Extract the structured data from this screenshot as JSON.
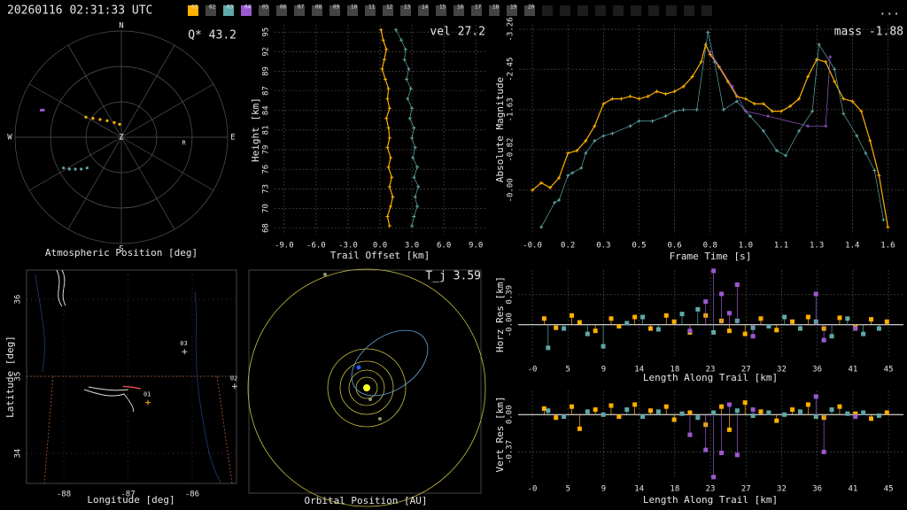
{
  "header": {
    "timestamp": "20260116 02:31:33 UTC",
    "menu": "...",
    "tabs": [
      {
        "label": "01",
        "color": "#ffb000"
      },
      {
        "label": "02",
        "color": "#444444"
      },
      {
        "label": "03",
        "color": "#5fa8a8"
      },
      {
        "label": "04",
        "color": "#9b59d0"
      },
      {
        "label": "05",
        "color": "#444444"
      },
      {
        "label": "06",
        "color": "#444444"
      },
      {
        "label": "07",
        "color": "#444444"
      },
      {
        "label": "08",
        "color": "#444444"
      },
      {
        "label": "09",
        "color": "#444444"
      },
      {
        "label": "10",
        "color": "#444444"
      },
      {
        "label": "11",
        "color": "#444444"
      },
      {
        "label": "12",
        "color": "#444444"
      },
      {
        "label": "13",
        "color": "#444444"
      },
      {
        "label": "14",
        "color": "#444444"
      },
      {
        "label": "15",
        "color": "#444444"
      },
      {
        "label": "16",
        "color": "#444444"
      },
      {
        "label": "17",
        "color": "#444444"
      },
      {
        "label": "18",
        "color": "#444444"
      },
      {
        "label": "19",
        "color": "#444444"
      },
      {
        "label": "20",
        "color": "#444444"
      }
    ]
  },
  "chart_data": [
    {
      "type": "polar",
      "xlabel": "Atmospheric Position [deg]",
      "annotation": "Q* 43.2",
      "compass": [
        "N",
        "E",
        "S",
        "W"
      ],
      "zenith": "Z",
      "xlim": [
        -90,
        90
      ],
      "ylim": [
        -90,
        90
      ],
      "marker": {
        "label": "R",
        "x": 53,
        "y": -5
      },
      "series": [
        {
          "color": "#ffb000",
          "x": [
            -30,
            -24,
            -18,
            -12,
            -6,
            -1.5
          ],
          "values": [
            17,
            16,
            15,
            14,
            12.5,
            11
          ]
        },
        {
          "color": "#5fa8a8",
          "x": [
            -49,
            -44,
            -39,
            -34,
            -29
          ],
          "values": [
            -26,
            -27,
            -27,
            -27,
            -26
          ]
        },
        {
          "color": "#9b59d0",
          "x": [
            -68,
            -66
          ],
          "values": [
            23,
            23
          ]
        }
      ]
    },
    {
      "type": "line",
      "xlabel": "Trail Offset [km]",
      "ylabel": "Height [km]",
      "annotation": "vel 27.2",
      "xlim": [
        -9.9,
        9.9
      ],
      "ylim": [
        66.8,
        95.7
      ],
      "xticks": [
        {
          "value": -9,
          "label": "-9.0"
        },
        {
          "value": -6,
          "label": "-6.0"
        },
        {
          "value": -3,
          "label": "-3.0"
        },
        {
          "value": 0,
          "label": "0.0"
        },
        {
          "value": 3,
          "label": "3.0"
        },
        {
          "value": 6,
          "label": "6.0"
        },
        {
          "value": 9,
          "label": "9.0"
        }
      ],
      "yticks": [
        {
          "value": 67.7,
          "label": "68"
        },
        {
          "value": 70.4,
          "label": "70"
        },
        {
          "value": 73.1,
          "label": "73"
        },
        {
          "value": 75.8,
          "label": "76"
        },
        {
          "value": 78.5,
          "label": "79"
        },
        {
          "value": 81.2,
          "label": "81"
        },
        {
          "value": 83.9,
          "label": "84"
        },
        {
          "value": 86.6,
          "label": "87"
        },
        {
          "value": 89.3,
          "label": "89"
        },
        {
          "value": 92.0,
          "label": "92"
        },
        {
          "value": 94.7,
          "label": "95"
        }
      ],
      "series": [
        {
          "color": "#ffb000",
          "x": [
            0.1,
            0.3,
            0.6,
            0.4,
            0.2,
            0.5,
            0.8,
            0.7,
            0.9,
            0.6,
            0.8,
            0.9,
            0.7,
            1.0,
            0.8,
            1.1,
            0.9,
            1.2,
            1.0,
            0.7,
            0.9
          ],
          "values": [
            95,
            93.6,
            92.3,
            90.9,
            89.6,
            88.2,
            86.9,
            85.5,
            84.2,
            82.8,
            81.5,
            80.1,
            78.8,
            77.4,
            76.1,
            74.7,
            73.4,
            72,
            70.7,
            69.3,
            68
          ]
        },
        {
          "color": "#5fa8a8",
          "x": [
            1.5,
            2.0,
            2.4,
            2.3,
            2.7,
            2.5,
            2.9,
            2.6,
            3.0,
            2.8,
            3.2,
            3.0,
            3.3,
            3.1,
            3.5,
            3.2,
            3.6,
            3.3,
            3.5,
            3.2,
            3.0
          ],
          "values": [
            95,
            93.6,
            92.3,
            90.9,
            89.6,
            88.2,
            86.9,
            85.5,
            84.2,
            82.8,
            81.5,
            80.1,
            78.8,
            77.4,
            76.1,
            74.7,
            73.4,
            72,
            70.7,
            69.3,
            68
          ]
        }
      ]
    },
    {
      "type": "line",
      "xlabel": "Frame Time [s]",
      "ylabel": "Absolute Magnitude",
      "annotation": "mass -1.88",
      "xlim": [
        -0.06,
        1.67
      ],
      "ylim": [
        0.9,
        -3.35
      ],
      "xticks": [
        {
          "value": 0,
          "label": "-0.0"
        },
        {
          "value": 0.16,
          "label": "0.2"
        },
        {
          "value": 0.32,
          "label": "0.3"
        },
        {
          "value": 0.48,
          "label": "0.5"
        },
        {
          "value": 0.64,
          "label": "0.6"
        },
        {
          "value": 0.8,
          "label": "0.8"
        },
        {
          "value": 0.96,
          "label": "1.0"
        },
        {
          "value": 1.12,
          "label": "1.1"
        },
        {
          "value": 1.28,
          "label": "1.3"
        },
        {
          "value": 1.44,
          "label": "1.4"
        },
        {
          "value": 1.6,
          "label": "1.6"
        }
      ],
      "yticks": [
        {
          "value": 0,
          "label": "-0.00"
        },
        -0.82,
        -1.63,
        -2.45,
        -3.26
      ],
      "series": [
        {
          "color": "#ffb000",
          "x": [
            0,
            0.04,
            0.08,
            0.12,
            0.16,
            0.2,
            0.24,
            0.28,
            0.32,
            0.36,
            0.4,
            0.44,
            0.48,
            0.52,
            0.56,
            0.6,
            0.64,
            0.68,
            0.72,
            0.76,
            0.78,
            0.8,
            0.84,
            0.88,
            0.92,
            0.96,
            1.0,
            1.04,
            1.08,
            1.12,
            1.16,
            1.2,
            1.24,
            1.28,
            1.32,
            1.36,
            1.4,
            1.44,
            1.48,
            1.52,
            1.56,
            1.6
          ],
          "values": [
            0.0,
            -0.15,
            -0.05,
            -0.25,
            -0.75,
            -0.8,
            -1.0,
            -1.3,
            -1.75,
            -1.85,
            -1.85,
            -1.9,
            -1.85,
            -1.9,
            -2.0,
            -1.95,
            -2.0,
            -2.1,
            -2.3,
            -2.6,
            -2.95,
            -2.75,
            -2.5,
            -2.2,
            -1.9,
            -1.85,
            -1.75,
            -1.75,
            -1.6,
            -1.6,
            -1.7,
            -1.85,
            -2.3,
            -2.65,
            -2.6,
            -2.2,
            -1.85,
            -1.8,
            -1.6,
            -1.0,
            -0.3,
            0.75
          ]
        },
        {
          "color": "#5fa8a8",
          "x": [
            0.04,
            0.1,
            0.12,
            0.16,
            0.18,
            0.22,
            0.24,
            0.28,
            0.32,
            0.36,
            0.44,
            0.48,
            0.54,
            0.6,
            0.64,
            0.68,
            0.74,
            0.79,
            0.82,
            0.86,
            0.92,
            0.98,
            1.04,
            1.1,
            1.14,
            1.2,
            1.26,
            1.29,
            1.36,
            1.4,
            1.46,
            1.5,
            1.54,
            1.58
          ],
          "values": [
            0.75,
            0.25,
            0.2,
            -0.3,
            -0.35,
            -0.45,
            -0.75,
            -1.0,
            -1.1,
            -1.15,
            -1.3,
            -1.4,
            -1.4,
            -1.5,
            -1.6,
            -1.63,
            -1.63,
            -3.2,
            -2.6,
            -1.63,
            -1.8,
            -1.5,
            -1.2,
            -0.8,
            -0.7,
            -1.2,
            -1.6,
            -2.95,
            -2.45,
            -1.55,
            -1.1,
            -0.75,
            -0.4,
            0.6
          ]
        },
        {
          "color": "#9b59d0",
          "x": [
            0.8,
            0.9,
            0.96,
            1.06,
            1.24,
            1.32,
            1.34
          ],
          "values": [
            -2.8,
            -2.1,
            -1.6,
            -1.5,
            -1.3,
            -1.3,
            -2.7
          ]
        }
      ]
    },
    {
      "type": "map",
      "xlabel": "Longitude [deg]",
      "ylabel": "Latitude [deg]",
      "xlim": [
        -88.58,
        -85.31
      ],
      "ylim": [
        33.61,
        36.38
      ],
      "xticks": [
        -88,
        -87,
        -86
      ],
      "yticks": [
        34,
        35,
        36
      ],
      "stations": {
        "labels": [
          "01",
          "02",
          "03"
        ],
        "x": [
          -86.69,
          -85.34,
          -86.12
        ],
        "values": [
          34.66,
          34.87,
          35.32
        ]
      },
      "series": [
        {
          "color": "#ff5050",
          "x": [
            -87.08,
            -86.94,
            -86.8
          ],
          "values": [
            34.87,
            34.86,
            34.84
          ]
        }
      ]
    },
    {
      "type": "orbit",
      "xlabel": "Orbital Position [AU]",
      "annotation": "T_j 3.59"
    },
    {
      "type": "stem",
      "xlabel": "Length Along Trail [km]",
      "ylabel": "Horz Res [km]",
      "xlim": [
        -1.8,
        47.1
      ],
      "ylim": [
        -0.44,
        0.71
      ],
      "xticks": [
        {
          "value": 0,
          "label": "-0"
        },
        {
          "value": 4.52,
          "label": "5"
        },
        {
          "value": 9.04,
          "label": "9"
        },
        {
          "value": 13.56,
          "label": "14"
        },
        {
          "value": 18.08,
          "label": "18"
        },
        {
          "value": 22.6,
          "label": "23"
        },
        {
          "value": 27.12,
          "label": "27"
        },
        {
          "value": 31.64,
          "label": "32"
        },
        {
          "value": 36.16,
          "label": "36"
        },
        {
          "value": 40.68,
          "label": "41"
        },
        {
          "value": 45.2,
          "label": "45"
        }
      ],
      "yticks": [
        {
          "value": 0,
          "label": "-0.00"
        },
        0.39
      ],
      "series": [
        {
          "color": "#ffb000",
          "x": [
            1.5,
            3,
            5,
            6,
            8,
            10,
            11,
            13,
            15,
            17,
            18,
            20,
            22,
            24,
            25,
            27,
            29,
            31,
            33,
            35,
            37,
            39,
            41,
            43,
            45
          ],
          "values": [
            0.08,
            -0.04,
            0.12,
            0.03,
            -0.08,
            0.08,
            -0.02,
            0.1,
            -0.05,
            0.12,
            0.04,
            -0.1,
            0.12,
            0.05,
            -0.08,
            -0.12,
            0.08,
            -0.07,
            0.04,
            0.1,
            -0.05,
            0.09,
            -0.03,
            0.07,
            0.04
          ]
        },
        {
          "color": "#5fa8a8",
          "x": [
            2,
            4,
            7,
            9,
            12,
            14,
            16,
            19,
            21,
            23,
            26,
            28,
            30,
            32,
            34,
            36,
            38,
            40,
            42,
            44
          ],
          "values": [
            -0.3,
            -0.05,
            -0.12,
            -0.28,
            0.02,
            0.1,
            -0.06,
            0.14,
            0.2,
            -0.1,
            0.05,
            -0.04,
            -0.02,
            0.1,
            -0.05,
            0.04,
            -0.15,
            0.08,
            -0.12,
            -0.05
          ]
        },
        {
          "color": "#9b59d0",
          "x": [
            20,
            22,
            23,
            24,
            25,
            26,
            28,
            36,
            37,
            41
          ],
          "values": [
            -0.08,
            0.3,
            0.7,
            0.4,
            0.15,
            0.52,
            -0.15,
            0.4,
            -0.2,
            -0.05
          ]
        }
      ]
    },
    {
      "type": "stem",
      "xlabel": "Length Along Trail [km]",
      "ylabel": "Vert Res [km]",
      "xlim": [
        -1.8,
        47.1
      ],
      "ylim": [
        -0.63,
        0.24
      ],
      "xticks": [
        {
          "value": 0,
          "label": "-0"
        },
        {
          "value": 4.52,
          "label": "5"
        },
        {
          "value": 9.04,
          "label": "9"
        },
        {
          "value": 13.56,
          "label": "14"
        },
        {
          "value": 18.08,
          "label": "18"
        },
        {
          "value": 22.6,
          "label": "23"
        },
        {
          "value": 27.12,
          "label": "27"
        },
        {
          "value": 31.64,
          "label": "32"
        },
        {
          "value": 36.16,
          "label": "36"
        },
        {
          "value": 40.68,
          "label": "41"
        },
        {
          "value": 45.2,
          "label": "45"
        }
      ],
      "yticks": [
        {
          "value": 0,
          "label": "0.00"
        },
        -0.37
      ],
      "series": [
        {
          "color": "#ffb000",
          "x": [
            1.5,
            3,
            5,
            6,
            8,
            10,
            11,
            13,
            15,
            17,
            18,
            20,
            22,
            24,
            25,
            27,
            29,
            31,
            33,
            35,
            37,
            39,
            41,
            43,
            45
          ],
          "values": [
            0.06,
            -0.03,
            0.08,
            -0.14,
            0.05,
            0.09,
            -0.02,
            0.1,
            0.04,
            0.08,
            -0.05,
            0.02,
            -0.1,
            0.08,
            -0.15,
            0.12,
            0.03,
            -0.06,
            0.05,
            0.1,
            -0.03,
            0.08,
            0.01,
            -0.04,
            0.02
          ]
        },
        {
          "color": "#5fa8a8",
          "x": [
            2,
            4,
            7,
            9,
            12,
            14,
            16,
            19,
            21,
            23,
            26,
            28,
            30,
            32,
            34,
            36,
            38,
            40,
            42,
            44
          ],
          "values": [
            0.04,
            -0.02,
            0.03,
            0.0,
            0.05,
            -0.02,
            0.03,
            0.01,
            -0.03,
            0.02,
            0.04,
            -0.01,
            0.02,
            0.0,
            0.03,
            -0.02,
            0.05,
            0.01,
            0.02,
            -0.01
          ]
        },
        {
          "color": "#9b59d0",
          "x": [
            20,
            22,
            23,
            24,
            25,
            26,
            28,
            36,
            37,
            41
          ],
          "values": [
            -0.2,
            -0.35,
            -0.62,
            -0.38,
            0.1,
            -0.4,
            0.05,
            0.18,
            -0.37,
            -0.02
          ]
        }
      ]
    }
  ]
}
